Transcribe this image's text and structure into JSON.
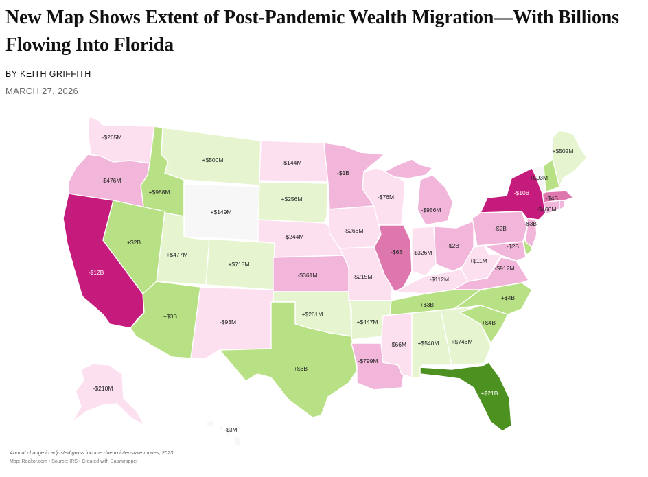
{
  "article": {
    "title": "New Map Shows Extent of Post-Pandemic Wealth Migration—With Billions Flowing Into Florida",
    "byline": "BY KEITH GRIFFITH",
    "date": "MARCH 27, 2026"
  },
  "map": {
    "caption": "Annual change in adjusted gross income due to inter-state moves, 2023",
    "credit": "Map: Realtor.com • Source: IRS • Created with Datawrapper",
    "colors": {
      "strong_neg": "#c51b7d",
      "neg_3": "#de77ae",
      "neg_2": "#f1b6da",
      "neg_1": "#fde0ef",
      "neutral": "#f7f7f7",
      "pos_1": "#e6f5d0",
      "pos_2": "#b8e186",
      "pos_3": "#7fbc41",
      "strong_pos": "#4d9221"
    },
    "states": [
      {
        "id": "WA",
        "value": "-$265M"
      },
      {
        "id": "OR",
        "value": "-$476M"
      },
      {
        "id": "CA",
        "value": "-$12B"
      },
      {
        "id": "ID",
        "value": "+$988M"
      },
      {
        "id": "NV",
        "value": "+$2B"
      },
      {
        "id": "MT",
        "value": "+$500M"
      },
      {
        "id": "WY",
        "value": "+$149M"
      },
      {
        "id": "UT",
        "value": "+$477M"
      },
      {
        "id": "AZ",
        "value": "+$3B"
      },
      {
        "id": "CO",
        "value": "+$715M"
      },
      {
        "id": "NM",
        "value": "-$93M"
      },
      {
        "id": "ND",
        "value": "-$144M"
      },
      {
        "id": "SD",
        "value": "+$256M"
      },
      {
        "id": "NE",
        "value": "-$244M"
      },
      {
        "id": "KS",
        "value": "-$361M"
      },
      {
        "id": "OK",
        "value": "+$261M"
      },
      {
        "id": "TX",
        "value": "+$6B"
      },
      {
        "id": "MN",
        "value": "-$1B"
      },
      {
        "id": "IA",
        "value": "-$266M"
      },
      {
        "id": "MO",
        "value": "-$215M"
      },
      {
        "id": "AR",
        "value": "+$447M"
      },
      {
        "id": "LA",
        "value": "-$799M"
      },
      {
        "id": "WI",
        "value": "-$76M"
      },
      {
        "id": "IL",
        "value": "-$6B"
      },
      {
        "id": "MI",
        "value": "-$956M"
      },
      {
        "id": "IN",
        "value": "-$326M"
      },
      {
        "id": "OH",
        "value": "-$2B"
      },
      {
        "id": "KY",
        "value": "-$112M"
      },
      {
        "id": "TN",
        "value": "+$3B"
      },
      {
        "id": "MS",
        "value": "-$66M"
      },
      {
        "id": "AL",
        "value": "+$540M"
      },
      {
        "id": "GA",
        "value": "+$746M"
      },
      {
        "id": "FL",
        "value": "+$21B"
      },
      {
        "id": "SC",
        "value": "+$4B"
      },
      {
        "id": "NC",
        "value": "+$4B"
      },
      {
        "id": "VA",
        "value": "-$912M"
      },
      {
        "id": "WV",
        "value": "+$11M"
      },
      {
        "id": "PA",
        "value": "-$2B"
      },
      {
        "id": "MD",
        "value": "-$2B"
      },
      {
        "id": "NY",
        "value": "-$10B"
      },
      {
        "id": "NJ",
        "value": "-$3B"
      },
      {
        "id": "CT",
        "value": "-$460M"
      },
      {
        "id": "MA",
        "value": "-$4B"
      },
      {
        "id": "VT",
        "value": "+$93M"
      },
      {
        "id": "ME",
        "value": "+$502M"
      },
      {
        "id": "AK",
        "value": "-$210M"
      },
      {
        "id": "HI",
        "value": "-$3M"
      }
    ]
  }
}
